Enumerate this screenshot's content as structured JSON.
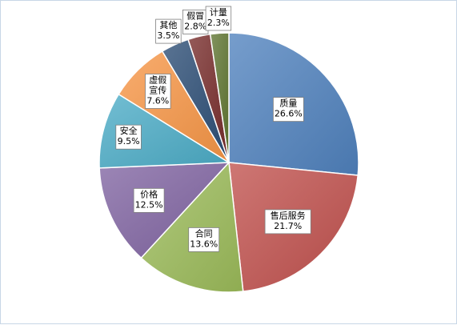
{
  "chart_data": {
    "type": "pie",
    "title": "",
    "start_angle_deg": 0,
    "direction": "clockwise",
    "legend": "none",
    "slices": [
      {
        "label": "质量",
        "value": 26.6,
        "value_label": "26.6%",
        "color": "#4f81bd"
      },
      {
        "label": "售后服务",
        "value": 21.7,
        "value_label": "21.7%",
        "color": "#c0504d"
      },
      {
        "label": "合同",
        "value": 13.6,
        "value_label": "13.6%",
        "color": "#9bbb59"
      },
      {
        "label": "价格",
        "value": 12.5,
        "value_label": "12.5%",
        "color": "#8064a2"
      },
      {
        "label": "安全",
        "value": 9.5,
        "value_label": "9.5%",
        "color": "#4bacc6"
      },
      {
        "label": "虚假宣传",
        "value": 7.6,
        "value_label": "7.6%",
        "color": "#f79646"
      },
      {
        "label": "其他",
        "value": 3.5,
        "value_label": "3.5%",
        "color": "#2c4d75"
      },
      {
        "label": "假冒",
        "value": 2.8,
        "value_label": "2.8%",
        "color": "#772c2a"
      },
      {
        "label": "计量",
        "value": 2.3,
        "value_label": "2.3%",
        "color": "#5f7530"
      }
    ]
  }
}
